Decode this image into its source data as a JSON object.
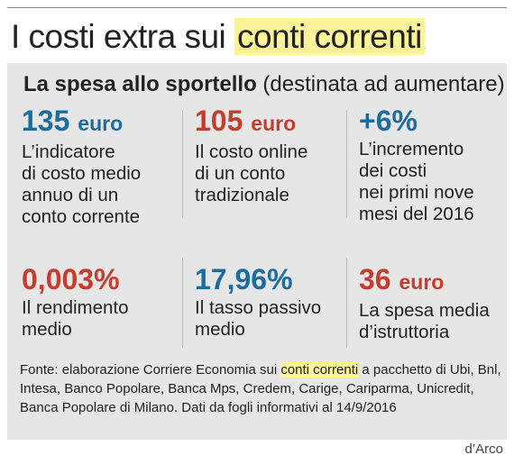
{
  "header": {
    "title_prefix": "I costi extra sui ",
    "title_highlight": "conti correnti"
  },
  "panel": {
    "subtitle_bold": "La spesa allo sportello",
    "subtitle_paren": "(destinata ad aumentare)"
  },
  "stats": [
    {
      "value": "135",
      "unit": "euro",
      "desc": "L’indicatore\ndi costo medio\nannuo di un\nconto corrente",
      "color": "#1b6da0"
    },
    {
      "value": "105",
      "unit": "euro",
      "desc": "Il costo online\ndi un conto\ntradizionale",
      "color": "#c53d2f"
    },
    {
      "value": "+6%",
      "unit": "",
      "desc": "L’incremento\ndei costi\nnei primi nove\nmesi del 2016",
      "color": "#1b6da0"
    },
    {
      "value": "0,003%",
      "unit": "",
      "desc": "Il rendimento\nmedio",
      "color": "#c53d2f"
    },
    {
      "value": "17,96%",
      "unit": "",
      "desc": " Il tasso passivo\nmedio",
      "color": "#1b6da0"
    },
    {
      "value": "36",
      "unit": "euro",
      "desc": "La spesa media\nd’istruttoria",
      "color": "#c53d2f"
    }
  ],
  "source": {
    "before": "Fonte: elaborazione Corriere Economia sui ",
    "highlight": "conti correnti",
    "after": " a pacchetto di Ubi, Bnl, Intesa, Banco Popolare, Banca Mps, Credem, Carige, Cariparma, Unicredit, Banca  Popolare di Milano. Dati da fogli informativi al 14/9/2016"
  },
  "credit": "d’Arco"
}
